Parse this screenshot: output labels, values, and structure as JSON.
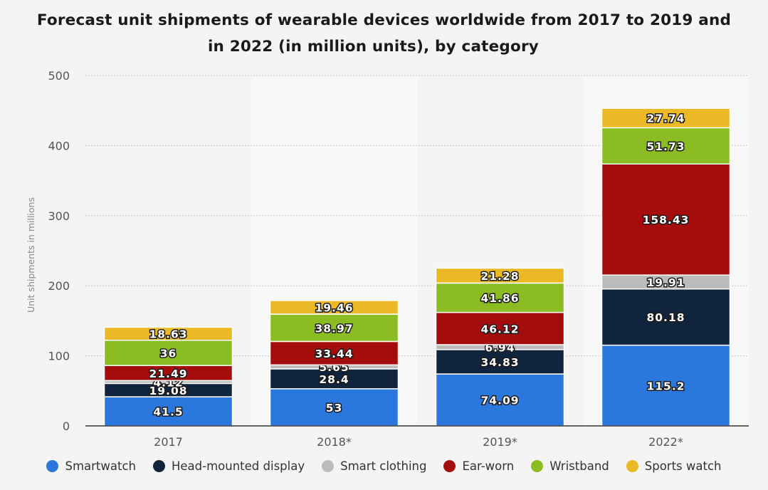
{
  "chart_data": {
    "type": "bar",
    "stacked": true,
    "title_line1": "Forecast unit shipments of wearable devices worldwide from 2017 to 2019 and",
    "title_line2": "in 2022 (in million units), by category",
    "xlabel": "",
    "ylabel": "Unit shipments in millions",
    "ylim": [
      0,
      500
    ],
    "yticks": [
      "0",
      "100",
      "200",
      "300",
      "400",
      "500"
    ],
    "categories": [
      "2017",
      "2018*",
      "2019*",
      "2022*"
    ],
    "series": [
      {
        "name": "Smartwatch",
        "color": "#2a77dd",
        "values": [
          41.5,
          53,
          74.09,
          115.2
        ]
      },
      {
        "name": "Head-mounted display",
        "color": "#10243e",
        "values": [
          19.08,
          28.4,
          34.83,
          80.18
        ]
      },
      {
        "name": "Smart clothing",
        "color": "#bcbcbc",
        "values": [
          4.12,
          5.65,
          6.94,
          19.91
        ]
      },
      {
        "name": "Ear-worn",
        "color": "#a50c0c",
        "values": [
          21.49,
          33.44,
          46.12,
          158.43
        ]
      },
      {
        "name": "Wristband",
        "color": "#8bbd23",
        "values": [
          36,
          38.97,
          41.86,
          51.73
        ]
      },
      {
        "name": "Sports watch",
        "color": "#ebb826",
        "values": [
          18.63,
          19.46,
          21.28,
          27.74
        ]
      }
    ],
    "legend_position": "bottom",
    "grid": true
  }
}
